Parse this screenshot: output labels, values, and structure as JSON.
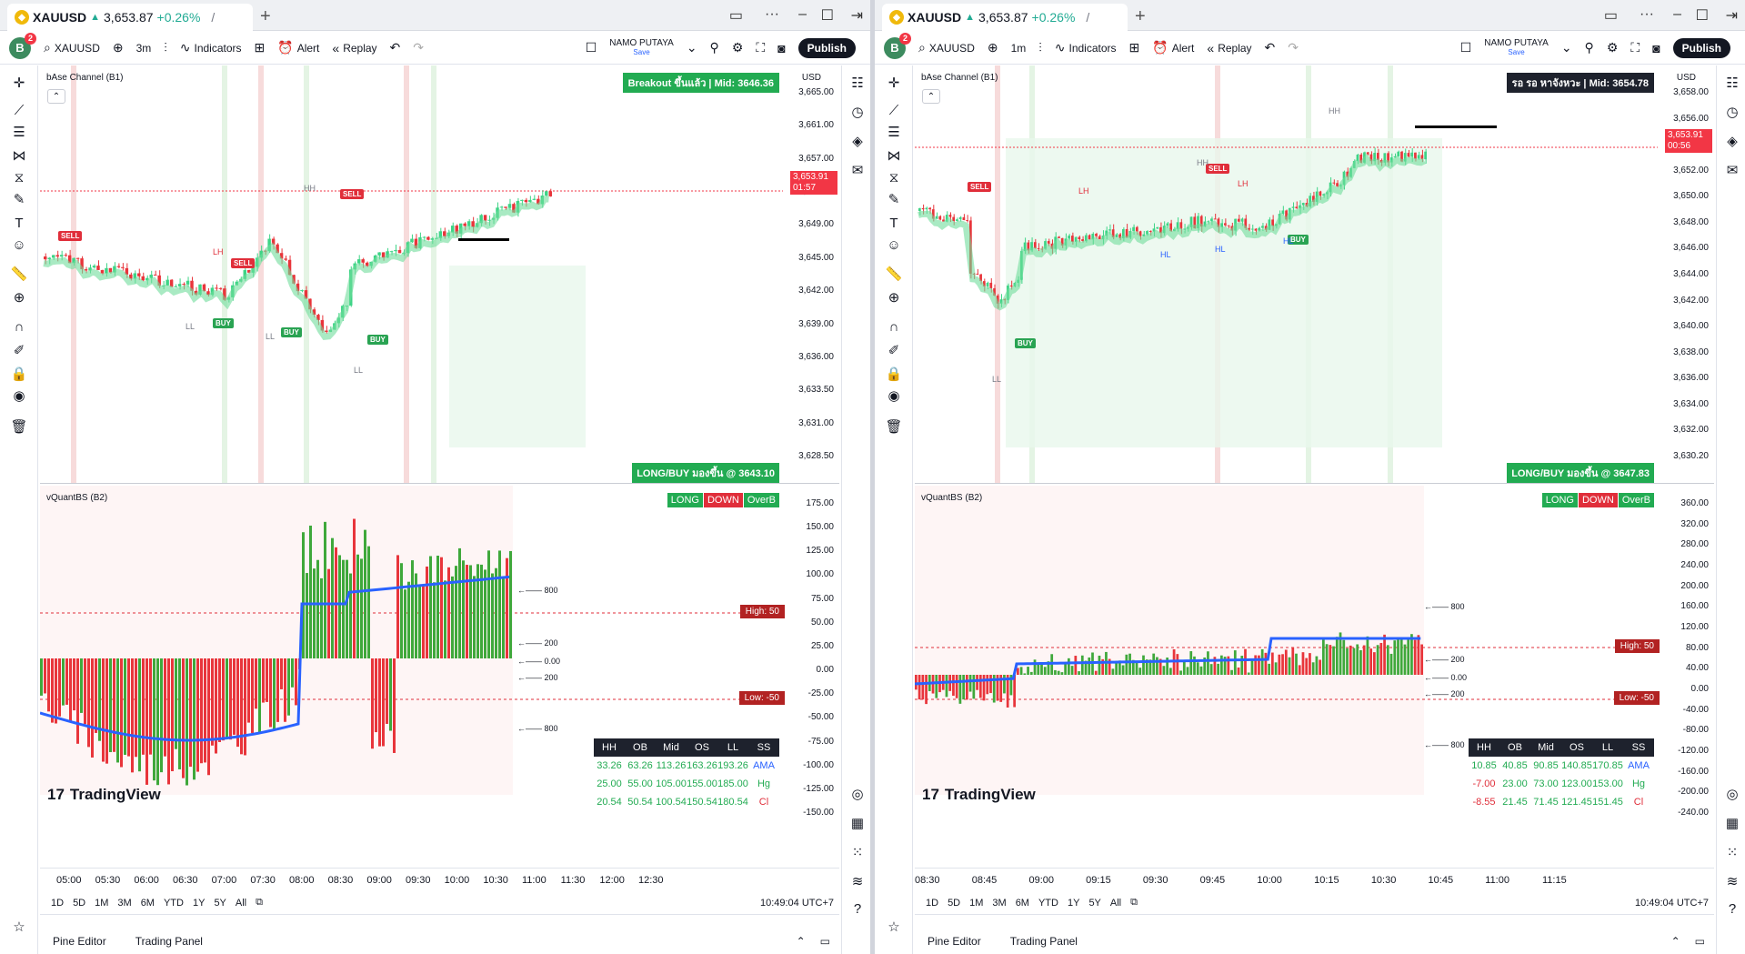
{
  "windows": [
    {
      "id": "winL",
      "tab": {
        "symbol": "XAUUSD",
        "price": "3,653.87",
        "change": "+0.26%"
      },
      "toolbar": {
        "user_initial": "B",
        "badge": "2",
        "symbol": "XAUUSD",
        "interval": "3m",
        "indicators": "Indicators",
        "alert": "Alert",
        "replay": "Replay",
        "account": "NAMO PUTAYA",
        "save": "Save",
        "publish": "Publish"
      },
      "pane1": {
        "indicator_title": "bAse Channel (B1)",
        "banner": "Breakout ขึ้นแล้ว | Mid: 3646.36",
        "banner_color": "#22ab52",
        "bottom_label": "LONG/BUY มองขึ้น @ 3643.10",
        "currency": "USD",
        "last_price": "3,653.91",
        "countdown": "01:57",
        "axis": [
          "3,665.00",
          "3,661.00",
          "3,657.00",
          "3,653.00",
          "3,649.00",
          "3,645.00",
          "3,642.00",
          "3,639.00",
          "3,636.00",
          "3,633.50",
          "3,631.00",
          "3,628.50"
        ],
        "signals": [
          {
            "type": "sell",
            "text": "SELL"
          },
          {
            "type": "sell",
            "text": "SELL"
          },
          {
            "type": "sell",
            "text": "SELL"
          },
          {
            "type": "buy",
            "text": "BUY"
          },
          {
            "type": "buy",
            "text": "BUY"
          },
          {
            "type": "buy",
            "text": "BUY"
          }
        ],
        "swing_labels": [
          "HH",
          "LH",
          "LL",
          "LL",
          "LL"
        ]
      },
      "pane2": {
        "indicator_title": "vQuantBS (B2)",
        "badges": [
          "LONG",
          "DOWN",
          "OverB"
        ],
        "axis": [
          "175.00",
          "150.00",
          "125.00",
          "100.00",
          "75.00",
          "50.00",
          "25.00",
          "0.00",
          "-25.00",
          "-50.00",
          "-75.00",
          "-100.00",
          "-125.00",
          "-150.00"
        ],
        "high_label": "High: 50",
        "low_label": "Low: -50",
        "levels": [
          "800",
          "200",
          "0.00",
          "200",
          "800"
        ],
        "table": {
          "header": [
            "HH",
            "OB",
            "Mid",
            "OS",
            "LL",
            "SS"
          ],
          "rows": [
            [
              "33.26",
              "63.26",
              "113.26",
              "163.26",
              "193.26",
              "AMA"
            ],
            [
              "25.00",
              "55.00",
              "105.00",
              "155.00",
              "185.00",
              "Hg"
            ],
            [
              "20.54",
              "50.54",
              "100.54",
              "150.54",
              "180.54",
              "Cl"
            ]
          ]
        }
      },
      "time_axis": [
        "05:00",
        "05:30",
        "06:00",
        "06:30",
        "07:00",
        "07:30",
        "08:00",
        "08:30",
        "09:00",
        "09:30",
        "10:00",
        "10:30",
        "11:00",
        "11:30",
        "12:00",
        "12:30"
      ],
      "ranges": [
        "1D",
        "5D",
        "1M",
        "3M",
        "6M",
        "YTD",
        "1Y",
        "5Y",
        "All"
      ],
      "clock": "10:49:04 UTC+7",
      "bottom_tabs": [
        "Pine Editor",
        "Trading Panel"
      ],
      "brand": "TradingView"
    },
    {
      "id": "winR",
      "tab": {
        "symbol": "XAUUSD",
        "price": "3,653.87",
        "change": "+0.26%"
      },
      "toolbar": {
        "user_initial": "B",
        "badge": "2",
        "symbol": "XAUUSD",
        "interval": "1m",
        "indicators": "Indicators",
        "alert": "Alert",
        "replay": "Replay",
        "account": "NAMO PUTAYA",
        "save": "Save",
        "publish": "Publish"
      },
      "pane1": {
        "indicator_title": "bAse Channel (B1)",
        "banner": "รอ รอ หาจังหวะ | Mid: 3654.78",
        "banner_color": "#1e222d",
        "bottom_label": "LONG/BUY มองขึ้น @ 3647.83",
        "currency": "USD",
        "last_price": "3,653.91",
        "countdown": "00:56",
        "axis": [
          "3,658.00",
          "3,656.00",
          "3,654.00",
          "3,652.00",
          "3,650.00",
          "3,648.00",
          "3,646.00",
          "3,644.00",
          "3,642.00",
          "3,640.00",
          "3,638.00",
          "3,636.00",
          "3,634.00",
          "3,632.00",
          "3,630.20"
        ],
        "signals": [
          {
            "type": "sell",
            "text": "SELL"
          },
          {
            "type": "sell",
            "text": "SELL"
          },
          {
            "type": "buy",
            "text": "BUY"
          },
          {
            "type": "buy",
            "text": "BUY"
          }
        ],
        "swing_labels": [
          "HH",
          "HH",
          "LH",
          "LH",
          "HL",
          "HL",
          "HL",
          "LL"
        ]
      },
      "pane2": {
        "indicator_title": "vQuantBS (B2)",
        "badges": [
          "LONG",
          "DOWN",
          "OverB"
        ],
        "axis": [
          "360.00",
          "320.00",
          "280.00",
          "240.00",
          "200.00",
          "160.00",
          "120.00",
          "80.00",
          "40.00",
          "0.00",
          "-40.00",
          "-80.00",
          "-120.00",
          "-160.00",
          "-200.00",
          "-240.00"
        ],
        "high_label": "High: 50",
        "low_label": "Low: -50",
        "levels": [
          "800",
          "200",
          "0.00",
          "200",
          "800"
        ],
        "table": {
          "header": [
            "HH",
            "OB",
            "Mid",
            "OS",
            "LL",
            "SS"
          ],
          "rows": [
            [
              "10.85",
              "40.85",
              "90.85",
              "140.85",
              "170.85",
              "AMA"
            ],
            [
              "-7.00",
              "23.00",
              "73.00",
              "123.00",
              "153.00",
              "Hg"
            ],
            [
              "-8.55",
              "21.45",
              "71.45",
              "121.45",
              "151.45",
              "Cl"
            ]
          ]
        }
      },
      "time_axis": [
        "08:30",
        "08:45",
        "09:00",
        "09:15",
        "09:30",
        "09:45",
        "10:00",
        "10:15",
        "10:30",
        "10:45",
        "11:00",
        "11:15"
      ],
      "ranges": [
        "1D",
        "5D",
        "1M",
        "3M",
        "6M",
        "YTD",
        "1Y",
        "5Y",
        "All"
      ],
      "clock": "10:49:04 UTC+7",
      "bottom_tabs": [
        "Pine Editor",
        "Trading Panel"
      ],
      "brand": "TradingView"
    }
  ],
  "colors": {
    "up": "#22c55e",
    "down": "#ef4444",
    "ama": "#2962ff",
    "sell_band": "#f28b8b",
    "buy_band": "#6fdc9b"
  }
}
